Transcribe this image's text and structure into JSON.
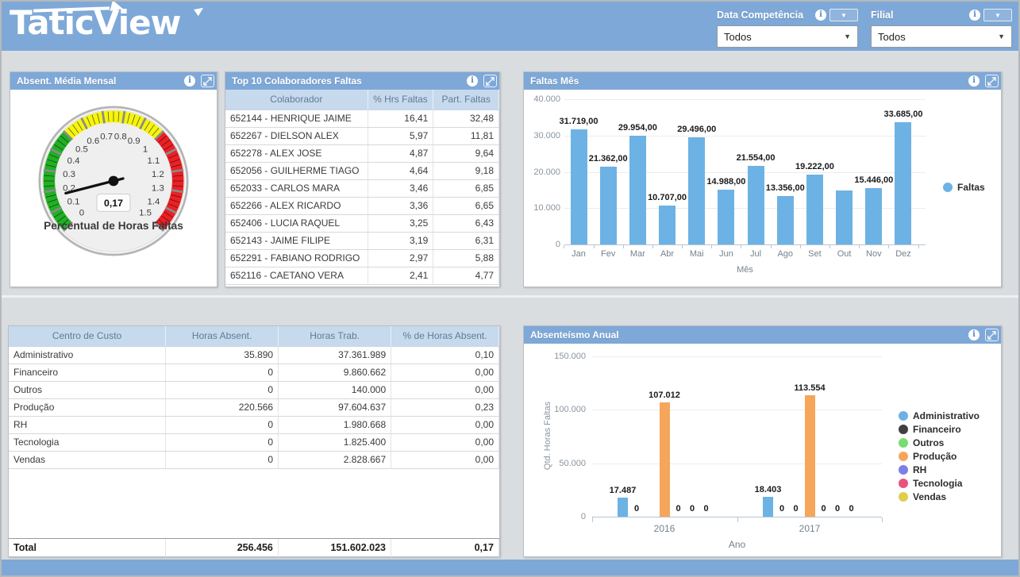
{
  "header": {
    "logo_text": "TaticView",
    "filters": [
      {
        "label": "Data Competência",
        "value": "Todos"
      },
      {
        "label": "Filial",
        "value": "Todos"
      }
    ]
  },
  "gauge_panel": {
    "title": "Absent. Média Mensal",
    "caption": "Percentual de Horas Faltas",
    "value_label": "0,17",
    "value": 0.17,
    "min": 0,
    "max": 1.5,
    "tick_labels": [
      "0",
      "0.1",
      "0.2",
      "0.3",
      "0.4",
      "0.5",
      "0.6",
      "0.7",
      "0.8",
      "0.9",
      "1",
      "1.1",
      "1.2",
      "1.3",
      "1.4",
      "1.5"
    ],
    "zones": [
      {
        "from": 0,
        "to": 0.5,
        "color": "#21b024"
      },
      {
        "from": 0.5,
        "to": 1,
        "color": "#f6f40d"
      },
      {
        "from": 1,
        "to": 1.5,
        "color": "#ec2024"
      }
    ]
  },
  "top10_panel": {
    "title": "Top 10 Colaboradores Faltas",
    "columns": [
      "Colaborador",
      "% Hrs Faltas",
      "Part. Faltas"
    ],
    "rows": [
      [
        "652144 - HENRIQUE JAIME",
        "16,41",
        "32,48"
      ],
      [
        "652267 - DIELSON ALEX",
        "5,97",
        "11,81"
      ],
      [
        "652278 - ALEX JOSE",
        "4,87",
        "9,64"
      ],
      [
        "652056 - GUILHERME TIAGO",
        "4,64",
        "9,18"
      ],
      [
        "652033 - CARLOS MARA",
        "3,46",
        "6,85"
      ],
      [
        "652266 - ALEX RICARDO",
        "3,36",
        "6,65"
      ],
      [
        "652406 - LUCIA RAQUEL",
        "3,25",
        "6,43"
      ],
      [
        "652143 - JAIME FILIPE",
        "3,19",
        "6,31"
      ],
      [
        "652291 - FABIANO RODRIGO",
        "2,97",
        "5,88"
      ],
      [
        "652116 - CAETANO VERA",
        "2,41",
        "4,77"
      ]
    ]
  },
  "faltas_mes_panel": {
    "title": "Faltas Mês",
    "type": "bar",
    "xlabel": "Mês",
    "legend": "Faltas",
    "bar_color": "#6db2e4",
    "ymax": 40000,
    "yticks": [
      {
        "value": 40000,
        "label": "40.000"
      },
      {
        "value": 30000,
        "label": "30.000"
      },
      {
        "value": 20000,
        "label": "20.000"
      },
      {
        "value": 10000,
        "label": "10.000"
      },
      {
        "value": 0,
        "label": "0"
      }
    ],
    "categories": [
      "Jan",
      "Fev",
      "Mar",
      "Abr",
      "Mai",
      "Jun",
      "Jul",
      "Ago",
      "Set",
      "Out",
      "Nov",
      "Dez"
    ],
    "values": [
      31719,
      21362,
      29954,
      10707,
      29496,
      14988,
      21554,
      13356,
      19222,
      14800,
      15446,
      33685
    ],
    "labels": [
      "31.719,00",
      "21.362,00",
      "29.954,00",
      "10.707,00",
      "29.496,00",
      "14.988,00",
      "21.554,00",
      "13.356,00",
      "19.222,00",
      "",
      "15.446,00",
      "33.685,00"
    ]
  },
  "custo_table": {
    "columns": [
      "Centro de Custo",
      "Horas Absent.",
      "Horas Trab.",
      "% de Horas Absent."
    ],
    "rows": [
      [
        "Administrativo",
        "35.890",
        "37.361.989",
        "0,10"
      ],
      [
        "Financeiro",
        "0",
        "9.860.662",
        "0,00"
      ],
      [
        "Outros",
        "0",
        "140.000",
        "0,00"
      ],
      [
        "Produção",
        "220.566",
        "97.604.637",
        "0,23"
      ],
      [
        "RH",
        "0",
        "1.980.668",
        "0,00"
      ],
      [
        "Tecnologia",
        "0",
        "1.825.400",
        "0,00"
      ],
      [
        "Vendas",
        "0",
        "2.828.667",
        "0,00"
      ]
    ],
    "total_row": [
      "Total",
      "256.456",
      "151.602.023",
      "0,17"
    ]
  },
  "absenteismo_panel": {
    "title": "Absenteísmo Anual",
    "type": "bar",
    "ylabel": "Qtd. Horas Faltas",
    "xlabel": "Ano",
    "ymax": 150000,
    "yticks": [
      {
        "value": 150000,
        "label": "150.000"
      },
      {
        "value": 100000,
        "label": "100.000"
      },
      {
        "value": 50000,
        "label": "50.000"
      },
      {
        "value": 0,
        "label": "0"
      }
    ],
    "legend": [
      {
        "name": "Administrativo",
        "color": "#6db2e4"
      },
      {
        "name": "Financeiro",
        "color": "#404040"
      },
      {
        "name": "Outros",
        "color": "#77dd70"
      },
      {
        "name": "Produção",
        "color": "#f5a65b"
      },
      {
        "name": "RH",
        "color": "#7e7ee8"
      },
      {
        "name": "Tecnologia",
        "color": "#e8537e"
      },
      {
        "name": "Vendas",
        "color": "#e0ce4e"
      }
    ],
    "groups": [
      {
        "year": "2016",
        "bars": [
          {
            "series": "Administrativo",
            "value": 17487,
            "label": "17.487"
          },
          {
            "series": "Financeiro",
            "value": 0,
            "label": "0"
          },
          {
            "series": "Outros",
            "value": 0,
            "label": ""
          },
          {
            "series": "Produção",
            "value": 107012,
            "label": "107.012"
          },
          {
            "series": "RH",
            "value": 0,
            "label": "0"
          },
          {
            "series": "Tecnologia",
            "value": 0,
            "label": "0"
          },
          {
            "series": "Vendas",
            "value": 0,
            "label": "0"
          }
        ]
      },
      {
        "year": "2017",
        "bars": [
          {
            "series": "Administrativo",
            "value": 18403,
            "label": "18.403"
          },
          {
            "series": "Financeiro",
            "value": 0,
            "label": "0"
          },
          {
            "series": "Outros",
            "value": 0,
            "label": "0"
          },
          {
            "series": "Produção",
            "value": 113554,
            "label": "113.554"
          },
          {
            "series": "RH",
            "value": 0,
            "label": "0"
          },
          {
            "series": "Tecnologia",
            "value": 0,
            "label": "0"
          },
          {
            "series": "Vendas",
            "value": 0,
            "label": "0"
          }
        ]
      }
    ]
  },
  "icons": {
    "dropdown": "▼",
    "info": "i"
  }
}
